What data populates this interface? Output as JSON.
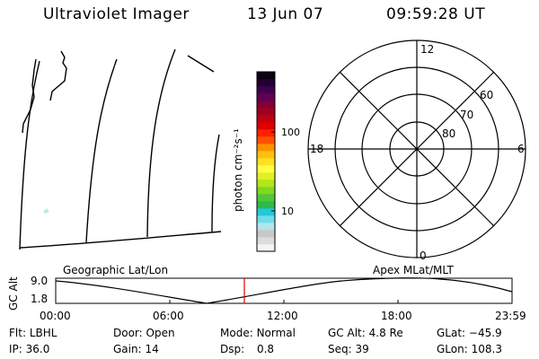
{
  "header": {
    "title": "Ultraviolet Imager",
    "date": "13 Jun 07",
    "time": "09:59:28 UT"
  },
  "geo_panel": {
    "label": "Geographic Lat/Lon"
  },
  "colorbar": {
    "unit_label": "photon cm⁻²s⁻¹",
    "ticks": [
      {
        "value": 100,
        "label": "100"
      },
      {
        "value": 10,
        "label": "10"
      }
    ],
    "colors": [
      "#f4f4f4",
      "#dcdcdc",
      "#c8c8c8",
      "#b0e6ea",
      "#70dce6",
      "#20c8dc",
      "#30b848",
      "#50c838",
      "#80d820",
      "#b0e818",
      "#e0f028",
      "#ffff40",
      "#ffe020",
      "#ffc010",
      "#ff9000",
      "#ff5000",
      "#ff2000",
      "#e00000",
      "#c00010",
      "#a00020",
      "#800038",
      "#600050",
      "#400050",
      "#200030",
      "#100018"
    ]
  },
  "polar_plot": {
    "label": "Apex MLat/MLT",
    "mlt_labels": {
      "top": "12",
      "left": "18",
      "right": "6",
      "bottom": "0"
    },
    "lat_rings": [
      {
        "value": 80,
        "label": "80"
      },
      {
        "value": 70,
        "label": "70"
      },
      {
        "value": 60,
        "label": "60"
      }
    ]
  },
  "altitude_plot": {
    "ylabel": "GC Alt",
    "yticks": [
      {
        "value": 9.0,
        "label": "9.0"
      },
      {
        "value": 1.8,
        "label": "1.8"
      }
    ],
    "xticks": [
      {
        "label": "00:00"
      },
      {
        "label": "06:00"
      },
      {
        "label": "12:00"
      },
      {
        "label": "18:00"
      },
      {
        "label": "23:59"
      }
    ],
    "current_time_marker": "09:59"
  },
  "status": {
    "filter": {
      "label": "Flt:",
      "value": "LBHL"
    },
    "door": {
      "label": "Door:",
      "value": "Open"
    },
    "mode": {
      "label": "Mode:",
      "value": "Normal"
    },
    "gc_alt": {
      "label": "GC Alt:",
      "value": "4.8 Re"
    },
    "glat": {
      "label": "GLat:",
      "value": "−45.9"
    },
    "ip": {
      "label": "IP:",
      "value": "36.0"
    },
    "gain": {
      "label": "Gain:",
      "value": "14"
    },
    "dsp": {
      "label": "Dsp:",
      "value": "0.8"
    },
    "seq": {
      "label": "Seq:",
      "value": "39"
    },
    "glon": {
      "label": "GLon:",
      "value": "108.3"
    }
  }
}
